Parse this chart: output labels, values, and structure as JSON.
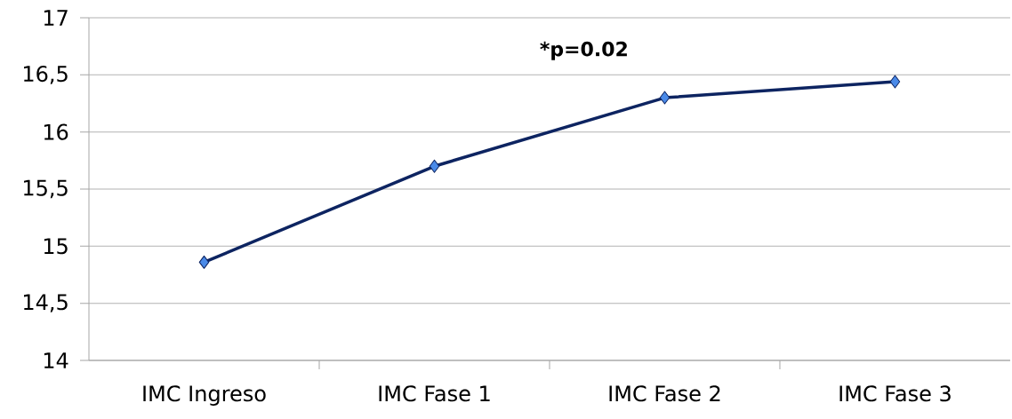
{
  "chart_data": {
    "type": "line",
    "categories": [
      "IMC Ingreso",
      "IMC Fase 1",
      "IMC Fase 2",
      "IMC Fase 3"
    ],
    "series": [
      {
        "color": "#0d2461",
        "values": [
          14.86,
          15.7,
          16.3,
          16.44
        ]
      }
    ],
    "marker": "diamond",
    "line_style": "solid",
    "grid": "y",
    "ylim": [
      14,
      17
    ],
    "yticks": [
      14,
      {
        "value": 14.5,
        "label": "14,5"
      },
      15,
      {
        "value": 15.5,
        "label": "15,5"
      },
      16,
      {
        "value": 16.5,
        "label": "16,5"
      },
      17
    ],
    "annotations": [
      {
        "text": "*p=0.02"
      }
    ]
  }
}
